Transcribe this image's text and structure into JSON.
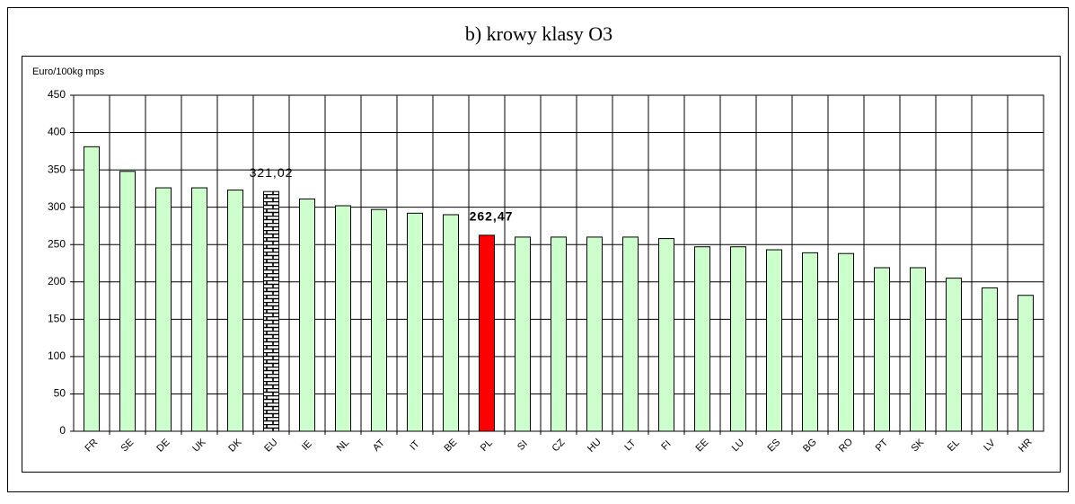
{
  "chart_data": {
    "type": "bar",
    "title": "b) krowy klasy O3",
    "y_label": "Euro/100kg mps",
    "categories": [
      "FR",
      "SE",
      "DE",
      "UK",
      "DK",
      "EU",
      "IE",
      "NL",
      "AT",
      "IT",
      "BE",
      "PL",
      "SI",
      "CZ",
      "HU",
      "LT",
      "FI",
      "EE",
      "LU",
      "ES",
      "BG",
      "RO",
      "PT",
      "SK",
      "EL",
      "LV",
      "HR"
    ],
    "values": [
      381,
      348,
      326,
      326,
      323,
      321.02,
      311,
      302,
      297,
      292,
      290,
      262.47,
      260,
      260,
      260,
      260,
      258,
      247,
      247,
      243,
      239,
      238,
      219,
      219,
      205,
      192,
      182
    ],
    "value_labels": [
      null,
      null,
      null,
      null,
      null,
      "321,02",
      null,
      null,
      null,
      null,
      null,
      "262,47",
      null,
      null,
      null,
      null,
      null,
      null,
      null,
      null,
      null,
      null,
      null,
      null,
      null,
      null,
      null
    ],
    "colors": [
      "#ccffcc",
      "#ccffcc",
      "#ccffcc",
      "#ccffcc",
      "#ccffcc",
      "#000000",
      "#ccffcc",
      "#ccffcc",
      "#ccffcc",
      "#ccffcc",
      "#ccffcc",
      "#ff0000",
      "#ccffcc",
      "#ccffcc",
      "#ccffcc",
      "#ccffcc",
      "#ccffcc",
      "#ccffcc",
      "#ccffcc",
      "#ccffcc",
      "#ccffcc",
      "#ccffcc",
      "#ccffcc",
      "#ccffcc",
      "#ccffcc",
      "#ccffcc",
      "#ccffcc"
    ],
    "ylim": [
      0,
      450
    ],
    "yticks": [
      0,
      50,
      100,
      150,
      200,
      250,
      300,
      350,
      400,
      450
    ],
    "grid": true
  }
}
